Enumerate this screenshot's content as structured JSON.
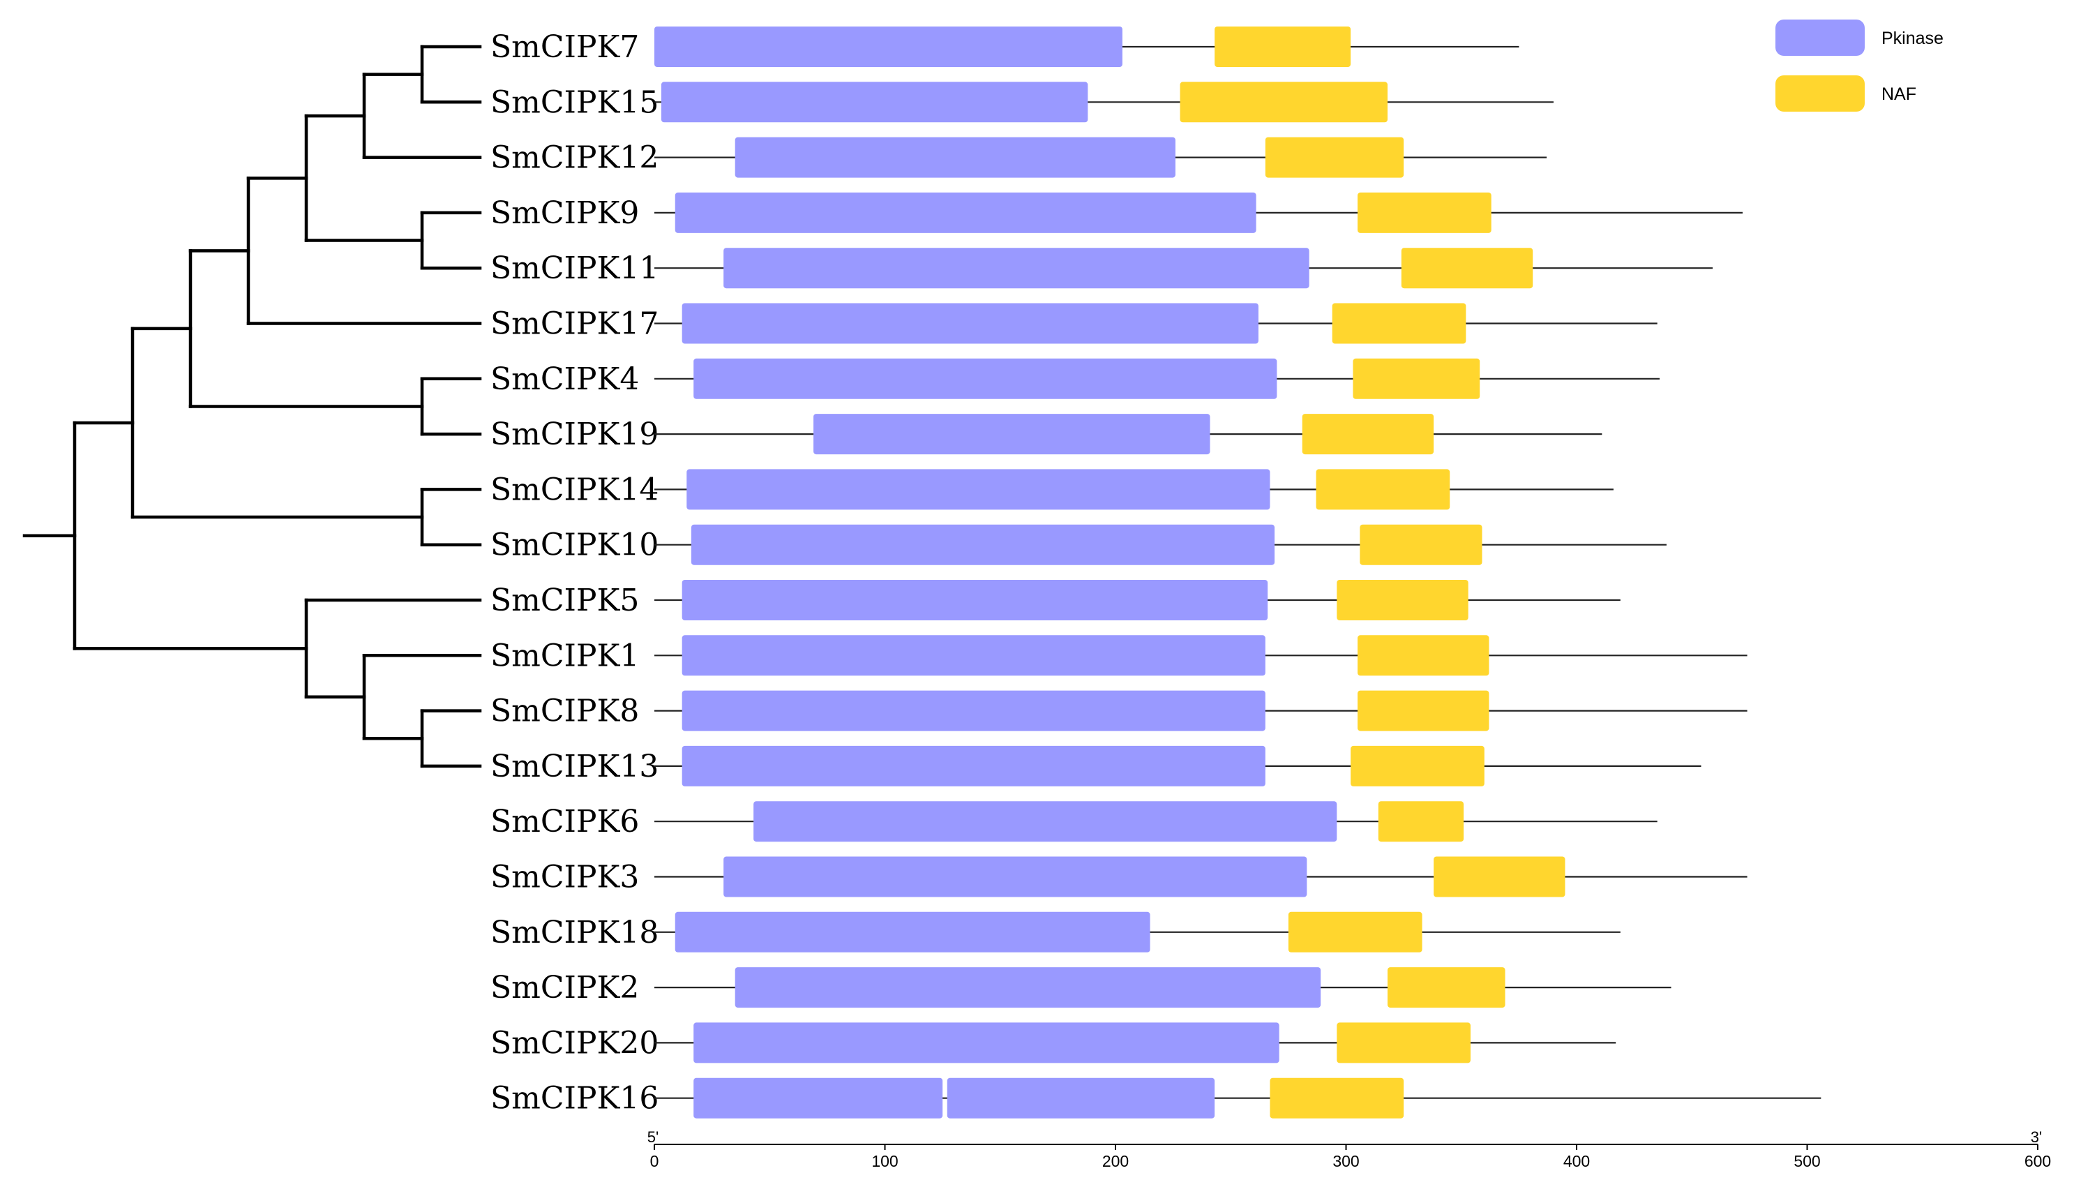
{
  "chart_data": {
    "type": "gene-structure-diagram",
    "title": "",
    "axis": {
      "min": 0,
      "max": 600,
      "ticks": [
        0,
        100,
        200,
        300,
        400,
        500,
        600
      ],
      "start_label": "5'",
      "end_label": "3'"
    },
    "legend": [
      {
        "name": "Pkinase",
        "color": "#9999FF"
      },
      {
        "name": "NAF",
        "color": "#FFD62E"
      }
    ],
    "genes": [
      {
        "name": "SmCIPK7",
        "length": 375,
        "domains": [
          {
            "type": "Pkinase",
            "start": 0,
            "end": 203
          },
          {
            "type": "NAF",
            "start": 243,
            "end": 302
          }
        ]
      },
      {
        "name": "SmCIPK15",
        "length": 390,
        "domains": [
          {
            "type": "Pkinase",
            "start": 3,
            "end": 188
          },
          {
            "type": "NAF",
            "start": 228,
            "end": 318
          }
        ]
      },
      {
        "name": "SmCIPK12",
        "length": 387,
        "domains": [
          {
            "type": "Pkinase",
            "start": 35,
            "end": 226
          },
          {
            "type": "NAF",
            "start": 265,
            "end": 325
          }
        ]
      },
      {
        "name": "SmCIPK9",
        "length": 472,
        "domains": [
          {
            "type": "Pkinase",
            "start": 9,
            "end": 261
          },
          {
            "type": "NAF",
            "start": 305,
            "end": 363
          }
        ]
      },
      {
        "name": "SmCIPK11",
        "length": 459,
        "domains": [
          {
            "type": "Pkinase",
            "start": 30,
            "end": 284
          },
          {
            "type": "NAF",
            "start": 324,
            "end": 381
          }
        ]
      },
      {
        "name": "SmCIPK17",
        "length": 435,
        "domains": [
          {
            "type": "Pkinase",
            "start": 12,
            "end": 262
          },
          {
            "type": "NAF",
            "start": 294,
            "end": 352
          }
        ]
      },
      {
        "name": "SmCIPK4",
        "length": 436,
        "domains": [
          {
            "type": "Pkinase",
            "start": 17,
            "end": 270
          },
          {
            "type": "NAF",
            "start": 303,
            "end": 358
          }
        ]
      },
      {
        "name": "SmCIPK19",
        "length": 411,
        "domains": [
          {
            "type": "Pkinase",
            "start": 69,
            "end": 241
          },
          {
            "type": "NAF",
            "start": 281,
            "end": 338
          }
        ]
      },
      {
        "name": "SmCIPK14",
        "length": 416,
        "domains": [
          {
            "type": "Pkinase",
            "start": 14,
            "end": 267
          },
          {
            "type": "NAF",
            "start": 287,
            "end": 345
          }
        ]
      },
      {
        "name": "SmCIPK10",
        "length": 439,
        "domains": [
          {
            "type": "Pkinase",
            "start": 16,
            "end": 269
          },
          {
            "type": "NAF",
            "start": 306,
            "end": 359
          }
        ]
      },
      {
        "name": "SmCIPK5",
        "length": 419,
        "domains": [
          {
            "type": "Pkinase",
            "start": 12,
            "end": 266
          },
          {
            "type": "NAF",
            "start": 296,
            "end": 353
          }
        ]
      },
      {
        "name": "SmCIPK1",
        "length": 474,
        "domains": [
          {
            "type": "Pkinase",
            "start": 12,
            "end": 265
          },
          {
            "type": "NAF",
            "start": 305,
            "end": 362
          }
        ]
      },
      {
        "name": "SmCIPK8",
        "length": 474,
        "domains": [
          {
            "type": "Pkinase",
            "start": 12,
            "end": 265
          },
          {
            "type": "NAF",
            "start": 305,
            "end": 362
          }
        ]
      },
      {
        "name": "SmCIPK13",
        "length": 454,
        "domains": [
          {
            "type": "Pkinase",
            "start": 12,
            "end": 265
          },
          {
            "type": "NAF",
            "start": 302,
            "end": 360
          }
        ]
      },
      {
        "name": "SmCIPK6",
        "length": 435,
        "domains": [
          {
            "type": "Pkinase",
            "start": 43,
            "end": 296
          },
          {
            "type": "NAF",
            "start": 314,
            "end": 351
          }
        ]
      },
      {
        "name": "SmCIPK3",
        "length": 474,
        "domains": [
          {
            "type": "Pkinase",
            "start": 30,
            "end": 283
          },
          {
            "type": "NAF",
            "start": 338,
            "end": 395
          }
        ]
      },
      {
        "name": "SmCIPK18",
        "length": 419,
        "domains": [
          {
            "type": "Pkinase",
            "start": 9,
            "end": 215
          },
          {
            "type": "NAF",
            "start": 275,
            "end": 333
          }
        ]
      },
      {
        "name": "SmCIPK2",
        "length": 441,
        "domains": [
          {
            "type": "Pkinase",
            "start": 35,
            "end": 289
          },
          {
            "type": "NAF",
            "start": 318,
            "end": 369
          }
        ]
      },
      {
        "name": "SmCIPK20",
        "length": 417,
        "domains": [
          {
            "type": "Pkinase",
            "start": 17,
            "end": 271
          },
          {
            "type": "NAF",
            "start": 296,
            "end": 354
          }
        ]
      },
      {
        "name": "SmCIPK16",
        "length": 506,
        "domains": [
          {
            "type": "Pkinase",
            "start": 17,
            "end": 125
          },
          {
            "type": "Pkinase",
            "start": 127,
            "end": 243
          },
          {
            "type": "NAF",
            "start": 267,
            "end": 325
          }
        ]
      }
    ],
    "tree": {
      "children": [
        {
          "children": [
            {
              "children": [
                {
                  "children": [
                    {
                      "children": [
                        {
                          "children": [
                            {
                              "children": [
                                {
                                  "leaf": 0
                                },
                                {
                                  "leaf": 1
                                }
                              ]
                            },
                            {
                              "leaf": 2
                            }
                          ]
                        },
                        {
                          "children": [
                            {
                              "leaf": 3
                            },
                            {
                              "leaf": 4
                            }
                          ]
                        }
                      ]
                    },
                    {
                      "leaf": 5
                    }
                  ]
                },
                {
                  "children": [
                    {
                      "leaf": 6
                    },
                    {
                      "leaf": 7
                    }
                  ]
                }
              ]
            },
            {
              "children": [
                {
                  "leaf": 8
                },
                {
                  "leaf": 9
                }
              ]
            }
          ]
        },
        {
          "children": [
            {
              "leaf": 10
            },
            {
              "children": [
                {
                  "leaf": 11
                },
                {
                  "children": [
                    {
                      "leaf": 12
                    },
                    {
                      "leaf": 13
                    }
                  ]
                }
              ]
            }
          ]
        }
      ]
    }
  }
}
